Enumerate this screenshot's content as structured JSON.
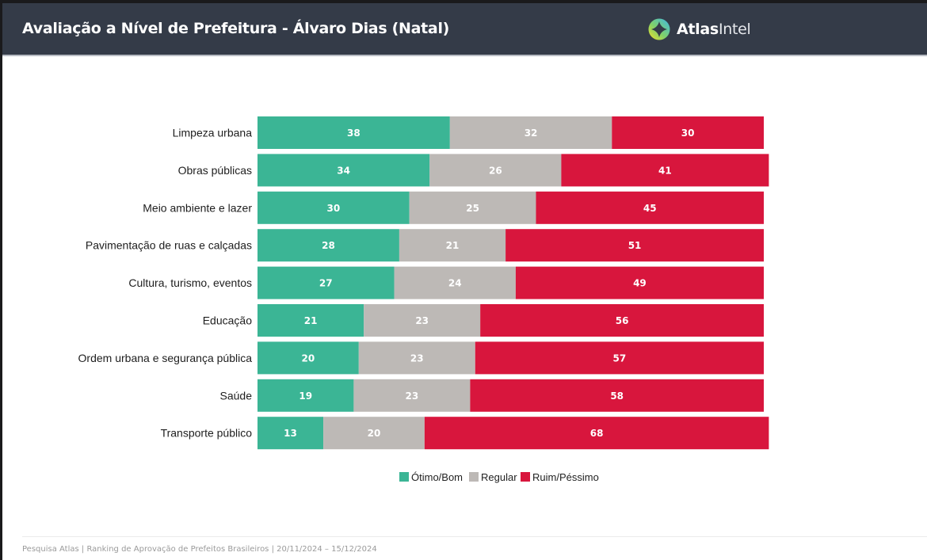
{
  "header": {
    "title": "Avaliação a Nível de Prefeitura - Álvaro Dias (Natal)",
    "logo_icon": "atlasintel-logo-icon",
    "logo_bold": "Atlas",
    "logo_light": "Intel"
  },
  "chart_data": {
    "type": "bar",
    "orientation": "horizontal-stacked-100",
    "title": "Avaliação a Nível de Prefeitura - Álvaro Dias (Natal)",
    "xlabel": "",
    "ylabel": "",
    "xlim": [
      0,
      100
    ],
    "grid": false,
    "legend_position": "bottom-center",
    "categories": [
      "Limpeza urbana",
      "Obras públicas",
      "Meio ambiente e lazer",
      "Pavimentação de ruas e calçadas",
      "Cultura, turismo, eventos",
      "Educação",
      "Ordem urbana e segurança pública",
      "Saúde",
      "Transporte público"
    ],
    "series": [
      {
        "name": "Ótimo/Bom",
        "color": "#3bb595",
        "values": [
          38,
          34,
          30,
          28,
          27,
          21,
          20,
          19,
          13
        ]
      },
      {
        "name": "Regular",
        "color": "#bdb9b6",
        "values": [
          32,
          26,
          25,
          21,
          24,
          23,
          23,
          23,
          20
        ]
      },
      {
        "name": "Ruim/Péssimo",
        "color": "#d8163d",
        "values": [
          30,
          41,
          45,
          51,
          49,
          56,
          57,
          58,
          68
        ]
      }
    ]
  },
  "footer": {
    "text": "Pesquisa Atlas  |  Ranking de Aprovação de Prefeitos Brasileiros  |  20/11/2024 – 15/12/2024"
  }
}
